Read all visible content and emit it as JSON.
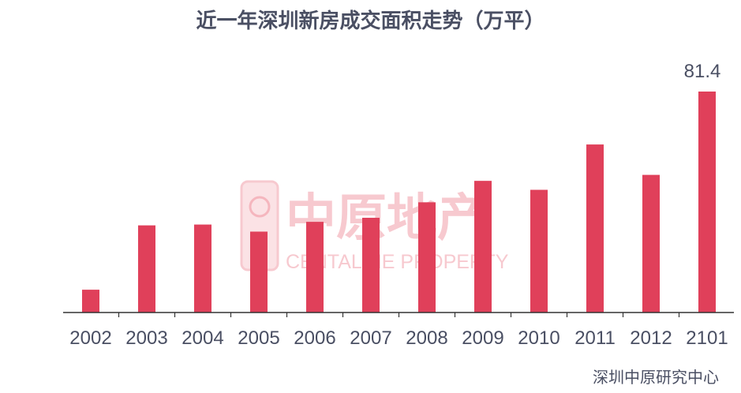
{
  "source": "深圳中原研究中心",
  "watermark": {
    "cn": "中原地产",
    "en": "CENTALINE PROPERTY"
  },
  "colors": {
    "bar": "#e0405a",
    "text": "#4a4f63",
    "axis": "#333333",
    "watermark": "#f7c9cf"
  },
  "chart_data": {
    "type": "bar",
    "title": "近一年深圳新房成交面积走势（万平）",
    "xlabel": "",
    "ylabel": "",
    "categories": [
      "2002",
      "2003",
      "2004",
      "2005",
      "2006",
      "2007",
      "2008",
      "2009",
      "2010",
      "2011",
      "2012",
      "2101"
    ],
    "values": [
      8.4,
      32.1,
      32.4,
      29.8,
      33.4,
      34.9,
      40.6,
      48.5,
      45.2,
      61.9,
      50.7,
      81.4
    ],
    "data_labels": [
      {
        "index": 11,
        "text": "81.4"
      }
    ],
    "ylim": [
      0,
      81.4
    ],
    "grid": false,
    "legend": "none"
  }
}
